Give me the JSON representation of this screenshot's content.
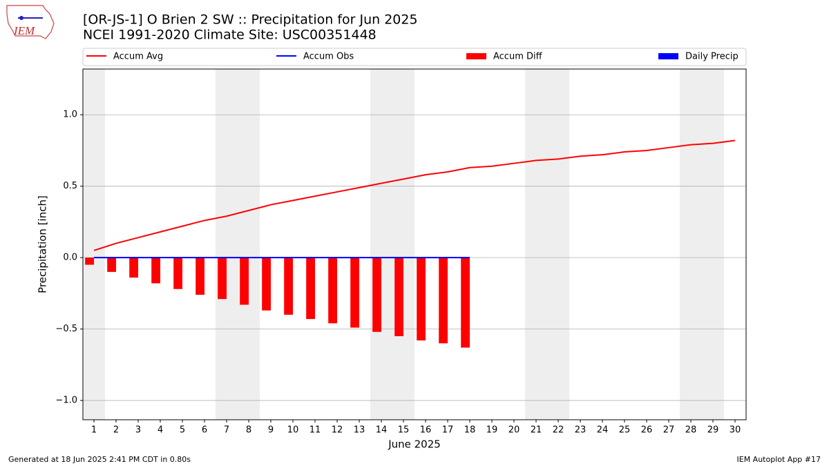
{
  "logo_text": "IEM",
  "chart_data": {
    "type": "line",
    "title": "[OR-JS-1] O Brien 2 SW :: Precipitation for Jun 2025",
    "subtitle": "NCEI 1991-2020 Climate Site: USC00351448",
    "y_label": "Precipitation [inch]",
    "x_label": "June 2025",
    "footer_left": "Generated at 18 Jun 2025 2:41 PM CDT in 0.80s",
    "footer_right": "IEM Autoplot App #17",
    "legend": "top",
    "grid": true,
    "shaded_days": [
      1,
      7,
      8,
      14,
      15,
      21,
      22,
      28,
      29
    ],
    "shade_color": "#eeeeee",
    "x": [
      1,
      2,
      3,
      4,
      5,
      6,
      7,
      8,
      9,
      10,
      11,
      12,
      13,
      14,
      15,
      16,
      17,
      18,
      19,
      20,
      21,
      22,
      23,
      24,
      25,
      26,
      27,
      28,
      29,
      30
    ],
    "xlim": [
      0.5,
      30.5
    ],
    "xticks": [
      1,
      2,
      3,
      4,
      5,
      6,
      7,
      8,
      9,
      10,
      11,
      12,
      13,
      14,
      15,
      16,
      17,
      18,
      19,
      20,
      21,
      22,
      23,
      24,
      25,
      26,
      27,
      28,
      29,
      30
    ],
    "ylim": [
      -1.135,
      1.32
    ],
    "yticks": [
      {
        "value": -1.0,
        "label": "−1.0"
      },
      {
        "value": -0.5,
        "label": "−0.5"
      },
      {
        "value": 0.0,
        "label": "0.0"
      },
      {
        "value": 0.5,
        "label": "0.5"
      },
      {
        "value": 1.0,
        "label": "1.0"
      }
    ],
    "series": [
      {
        "name": "Accum Avg",
        "color": "#ff0000",
        "kind": "line",
        "values": [
          0.05,
          0.1,
          0.14,
          0.18,
          0.22,
          0.26,
          0.29,
          0.33,
          0.37,
          0.4,
          0.43,
          0.46,
          0.49,
          0.52,
          0.55,
          0.58,
          0.6,
          0.63,
          0.64,
          0.66,
          0.68,
          0.69,
          0.71,
          0.72,
          0.74,
          0.75,
          0.77,
          0.79,
          0.8,
          0.82
        ]
      },
      {
        "name": "Accum Obs",
        "color": "#0000ff",
        "kind": "line",
        "values": [
          0,
          0,
          0,
          0,
          0,
          0,
          0,
          0,
          0,
          0,
          0,
          0,
          0,
          0,
          0,
          0,
          0,
          0,
          null,
          null,
          null,
          null,
          null,
          null,
          null,
          null,
          null,
          null,
          null,
          null
        ]
      },
      {
        "name": "Accum Diff",
        "color": "#ff0000",
        "kind": "bar",
        "offset": -1,
        "values": [
          -0.05,
          -0.1,
          -0.14,
          -0.18,
          -0.22,
          -0.26,
          -0.29,
          -0.33,
          -0.37,
          -0.4,
          -0.43,
          -0.46,
          -0.49,
          -0.52,
          -0.55,
          -0.58,
          -0.6,
          -0.63,
          null,
          null,
          null,
          null,
          null,
          null,
          null,
          null,
          null,
          null,
          null,
          null
        ]
      },
      {
        "name": "Daily Precip",
        "color": "#0000ff",
        "kind": "bar",
        "offset": 1,
        "values": [
          0,
          0,
          0,
          0,
          0,
          0,
          0,
          0,
          0,
          0,
          0,
          0,
          0,
          0,
          0,
          0,
          0,
          0,
          null,
          null,
          null,
          null,
          null,
          null,
          null,
          null,
          null,
          null,
          null,
          null
        ]
      }
    ]
  }
}
